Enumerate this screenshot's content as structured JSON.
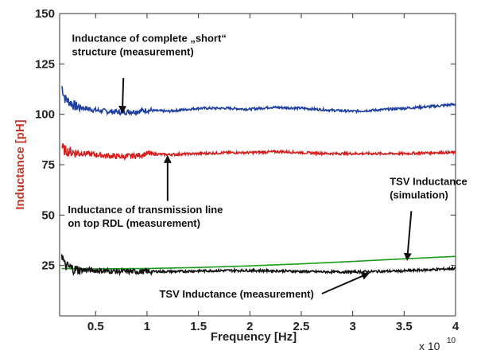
{
  "chart_data": {
    "type": "line",
    "xlabel": "Frequency [Hz]",
    "ylabel": "Inductance [pH]",
    "x_multiplier": "x 10",
    "x_multiplier_exp": "10",
    "xlim": [
      0.15,
      4.0
    ],
    "ylim": [
      0,
      150
    ],
    "x_ticks": [
      0.5,
      1,
      1.5,
      2,
      2.5,
      3,
      3.5,
      4
    ],
    "x_tick_labels": [
      "0.5",
      "1",
      "1.5",
      "2",
      "2.5",
      "3",
      "3.5",
      "4"
    ],
    "y_ticks": [
      25,
      50,
      75,
      100,
      125,
      150
    ],
    "y_tick_labels": [
      "25",
      "50",
      "75",
      "100",
      "125",
      "150"
    ],
    "grid": false,
    "series": [
      {
        "color": "#1f3f9f",
        "noisy": true,
        "points": [
          [
            0.17,
            114
          ],
          [
            0.2,
            108
          ],
          [
            0.25,
            106
          ],
          [
            0.3,
            104
          ],
          [
            0.4,
            103
          ],
          [
            0.5,
            102
          ],
          [
            0.6,
            101.5
          ],
          [
            0.75,
            101
          ],
          [
            0.9,
            101.5
          ],
          [
            1.0,
            102
          ],
          [
            1.2,
            101.5
          ],
          [
            1.5,
            103
          ],
          [
            1.8,
            103
          ],
          [
            2.0,
            102.5
          ],
          [
            2.2,
            103.5
          ],
          [
            2.5,
            103
          ],
          [
            2.8,
            102
          ],
          [
            3.0,
            101.5
          ],
          [
            3.2,
            102
          ],
          [
            3.5,
            103
          ],
          [
            3.8,
            104
          ],
          [
            4.0,
            105
          ]
        ]
      },
      {
        "color": "#d62020",
        "noisy": true,
        "points": [
          [
            0.17,
            84
          ],
          [
            0.2,
            82
          ],
          [
            0.3,
            81
          ],
          [
            0.4,
            80.5
          ],
          [
            0.5,
            80
          ],
          [
            0.6,
            79.5
          ],
          [
            0.75,
            79
          ],
          [
            0.9,
            79.5
          ],
          [
            1.0,
            80.5
          ],
          [
            1.2,
            80
          ],
          [
            1.5,
            80.5
          ],
          [
            1.8,
            81
          ],
          [
            2.0,
            81
          ],
          [
            2.3,
            81.5
          ],
          [
            2.5,
            81
          ],
          [
            2.8,
            80.5
          ],
          [
            3.0,
            80.5
          ],
          [
            3.2,
            80.5
          ],
          [
            3.5,
            80.5
          ],
          [
            3.8,
            81
          ],
          [
            4.0,
            81
          ]
        ]
      },
      {
        "color": "#1a9a1a",
        "noisy": false,
        "points": [
          [
            0.17,
            23.5
          ],
          [
            0.5,
            23.3
          ],
          [
            1.0,
            23.5
          ],
          [
            1.5,
            24
          ],
          [
            2.0,
            24.8
          ],
          [
            2.5,
            25.8
          ],
          [
            3.0,
            27
          ],
          [
            3.5,
            28.3
          ],
          [
            4.0,
            29.5
          ]
        ]
      },
      {
        "color": "#111111",
        "noisy": true,
        "points": [
          [
            0.17,
            31
          ],
          [
            0.2,
            25
          ],
          [
            0.3,
            23
          ],
          [
            0.5,
            22.5
          ],
          [
            0.75,
            22
          ],
          [
            1.0,
            22
          ],
          [
            1.3,
            22
          ],
          [
            1.5,
            22.3
          ],
          [
            1.8,
            22.5
          ],
          [
            2.0,
            22.5
          ],
          [
            2.3,
            22.3
          ],
          [
            2.5,
            22
          ],
          [
            2.8,
            21.8
          ],
          [
            3.0,
            21.8
          ],
          [
            3.2,
            22
          ],
          [
            3.5,
            22.3
          ],
          [
            3.8,
            23
          ],
          [
            4.0,
            23.5
          ]
        ]
      }
    ],
    "annotations": [
      {
        "lines": [
          "Inductance of complete „short“",
          "structure (measurement)"
        ],
        "text_at": [
          0.27,
          136
        ],
        "arrow_from": [
          0.77,
          118
        ],
        "arrow_to": [
          0.76,
          101
        ]
      },
      {
        "lines": [
          "Inductance of transmission line",
          "on top RDL (measurement)"
        ],
        "text_at": [
          0.23,
          51
        ],
        "arrow_from": [
          1.2,
          57
        ],
        "arrow_to": [
          1.2,
          79
        ]
      },
      {
        "lines": [
          "TSV Inductance",
          "(simulation)"
        ],
        "text_at": [
          3.36,
          65
        ],
        "arrow_from": [
          3.57,
          52
        ],
        "arrow_to": [
          3.53,
          28
        ]
      },
      {
        "lines": [
          "TSV Inductance (measurement)"
        ],
        "text_at": [
          1.12,
          9
        ],
        "arrow_from": [
          2.7,
          11
        ],
        "arrow_to": [
          3.15,
          21
        ]
      }
    ]
  }
}
